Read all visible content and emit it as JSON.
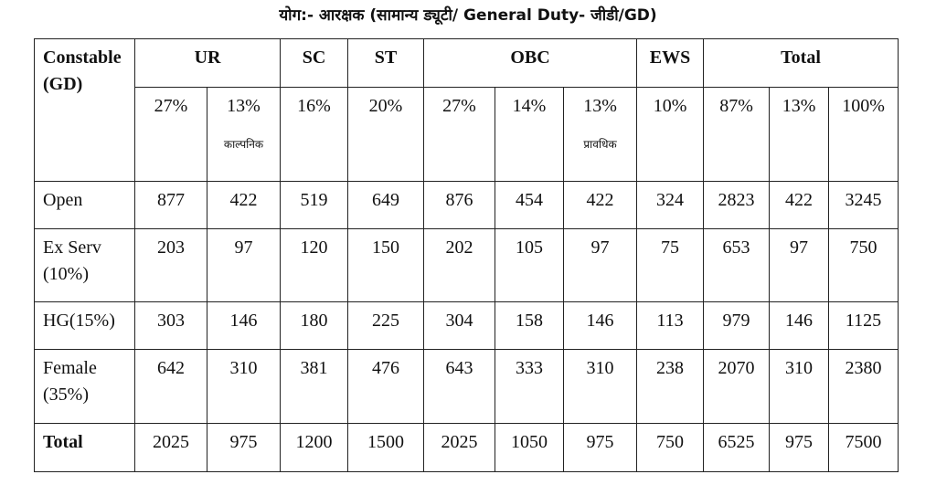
{
  "title": "योग:- आरक्षक (सामान्य ड्यूटी/ General Duty- जीडी/GD)",
  "header": {
    "corner_line1": "Constable",
    "corner_line2": "(GD)",
    "groups": [
      "UR",
      "SC",
      "ST",
      "OBC",
      "EWS",
      "Total"
    ]
  },
  "percent_row": {
    "values": [
      "27%",
      "13%",
      "16%",
      "20%",
      "27%",
      "14%",
      "13%",
      "10%",
      "87%",
      "13%",
      "100%"
    ],
    "ur_note": "काल्पनिक",
    "obc_note": "प्रावधिक"
  },
  "rows": [
    {
      "label_line1": "Open",
      "label_line2": "",
      "values": [
        "877",
        "422",
        "519",
        "649",
        "876",
        "454",
        "422",
        "324",
        "2823",
        "422",
        "3245"
      ]
    },
    {
      "label_line1": "Ex Serv",
      "label_line2": "(10%)",
      "values": [
        "203",
        "97",
        "120",
        "150",
        "202",
        "105",
        "97",
        "75",
        "653",
        "97",
        "750"
      ]
    },
    {
      "label_line1": "HG(15%)",
      "label_line2": "",
      "values": [
        "303",
        "146",
        "180",
        "225",
        "304",
        "158",
        "146",
        "113",
        "979",
        "146",
        "1125"
      ]
    },
    {
      "label_line1": "Female",
      "label_line2": "(35%)",
      "values": [
        "642",
        "310",
        "381",
        "476",
        "643",
        "333",
        "310",
        "238",
        "2070",
        "310",
        "2380"
      ]
    },
    {
      "label_line1": "Total",
      "label_line2": "",
      "values": [
        "2025",
        "975",
        "1200",
        "1500",
        "2025",
        "1050",
        "975",
        "750",
        "6525",
        "975",
        "7500"
      ]
    }
  ]
}
